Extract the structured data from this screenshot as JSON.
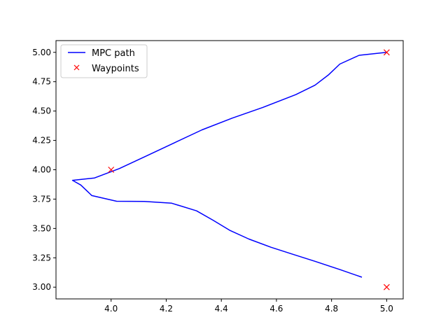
{
  "chart_data": {
    "type": "line",
    "title": "",
    "xlabel": "",
    "ylabel": "",
    "xlim": [
      3.8,
      5.06
    ],
    "ylim": [
      2.9,
      5.1
    ],
    "xticks": [
      4.0,
      4.2,
      4.4,
      4.6,
      4.8,
      5.0
    ],
    "xtick_labels": [
      "4.0",
      "4.2",
      "4.4",
      "4.6",
      "4.8",
      "5.0"
    ],
    "yticks": [
      3.0,
      3.25,
      3.5,
      3.75,
      4.0,
      4.25,
      4.5,
      4.75,
      5.0
    ],
    "ytick_labels": [
      "3.00",
      "3.25",
      "3.50",
      "3.75",
      "4.00",
      "4.25",
      "4.50",
      "4.75",
      "5.00"
    ],
    "grid": false,
    "legend": {
      "placement": "top-left",
      "entries": [
        "MPC path",
        "Waypoints"
      ]
    },
    "series": [
      {
        "name": "MPC path",
        "kind": "line",
        "color": "#0000ff",
        "points": [
          [
            4.91,
            3.085
          ],
          [
            4.83,
            3.15
          ],
          [
            4.74,
            3.22
          ],
          [
            4.66,
            3.28
          ],
          [
            4.58,
            3.34
          ],
          [
            4.5,
            3.41
          ],
          [
            4.43,
            3.485
          ],
          [
            4.37,
            3.57
          ],
          [
            4.31,
            3.65
          ],
          [
            4.22,
            3.715
          ],
          [
            4.12,
            3.73
          ],
          [
            4.02,
            3.732
          ],
          [
            3.93,
            3.78
          ],
          [
            3.89,
            3.87
          ],
          [
            3.86,
            3.91
          ],
          [
            3.94,
            3.93
          ],
          [
            4.03,
            4.01
          ],
          [
            4.13,
            4.12
          ],
          [
            4.23,
            4.23
          ],
          [
            4.33,
            4.34
          ],
          [
            4.44,
            4.44
          ],
          [
            4.55,
            4.53
          ],
          [
            4.67,
            4.64
          ],
          [
            4.74,
            4.72
          ],
          [
            4.79,
            4.81
          ],
          [
            4.83,
            4.9
          ],
          [
            4.9,
            4.975
          ],
          [
            5.0,
            5.0
          ]
        ]
      },
      {
        "name": "Waypoints",
        "kind": "marker-x",
        "color": "#ff0000",
        "points": [
          [
            4.0,
            4.0
          ],
          [
            5.0,
            5.0
          ],
          [
            5.0,
            3.0
          ]
        ]
      }
    ]
  }
}
